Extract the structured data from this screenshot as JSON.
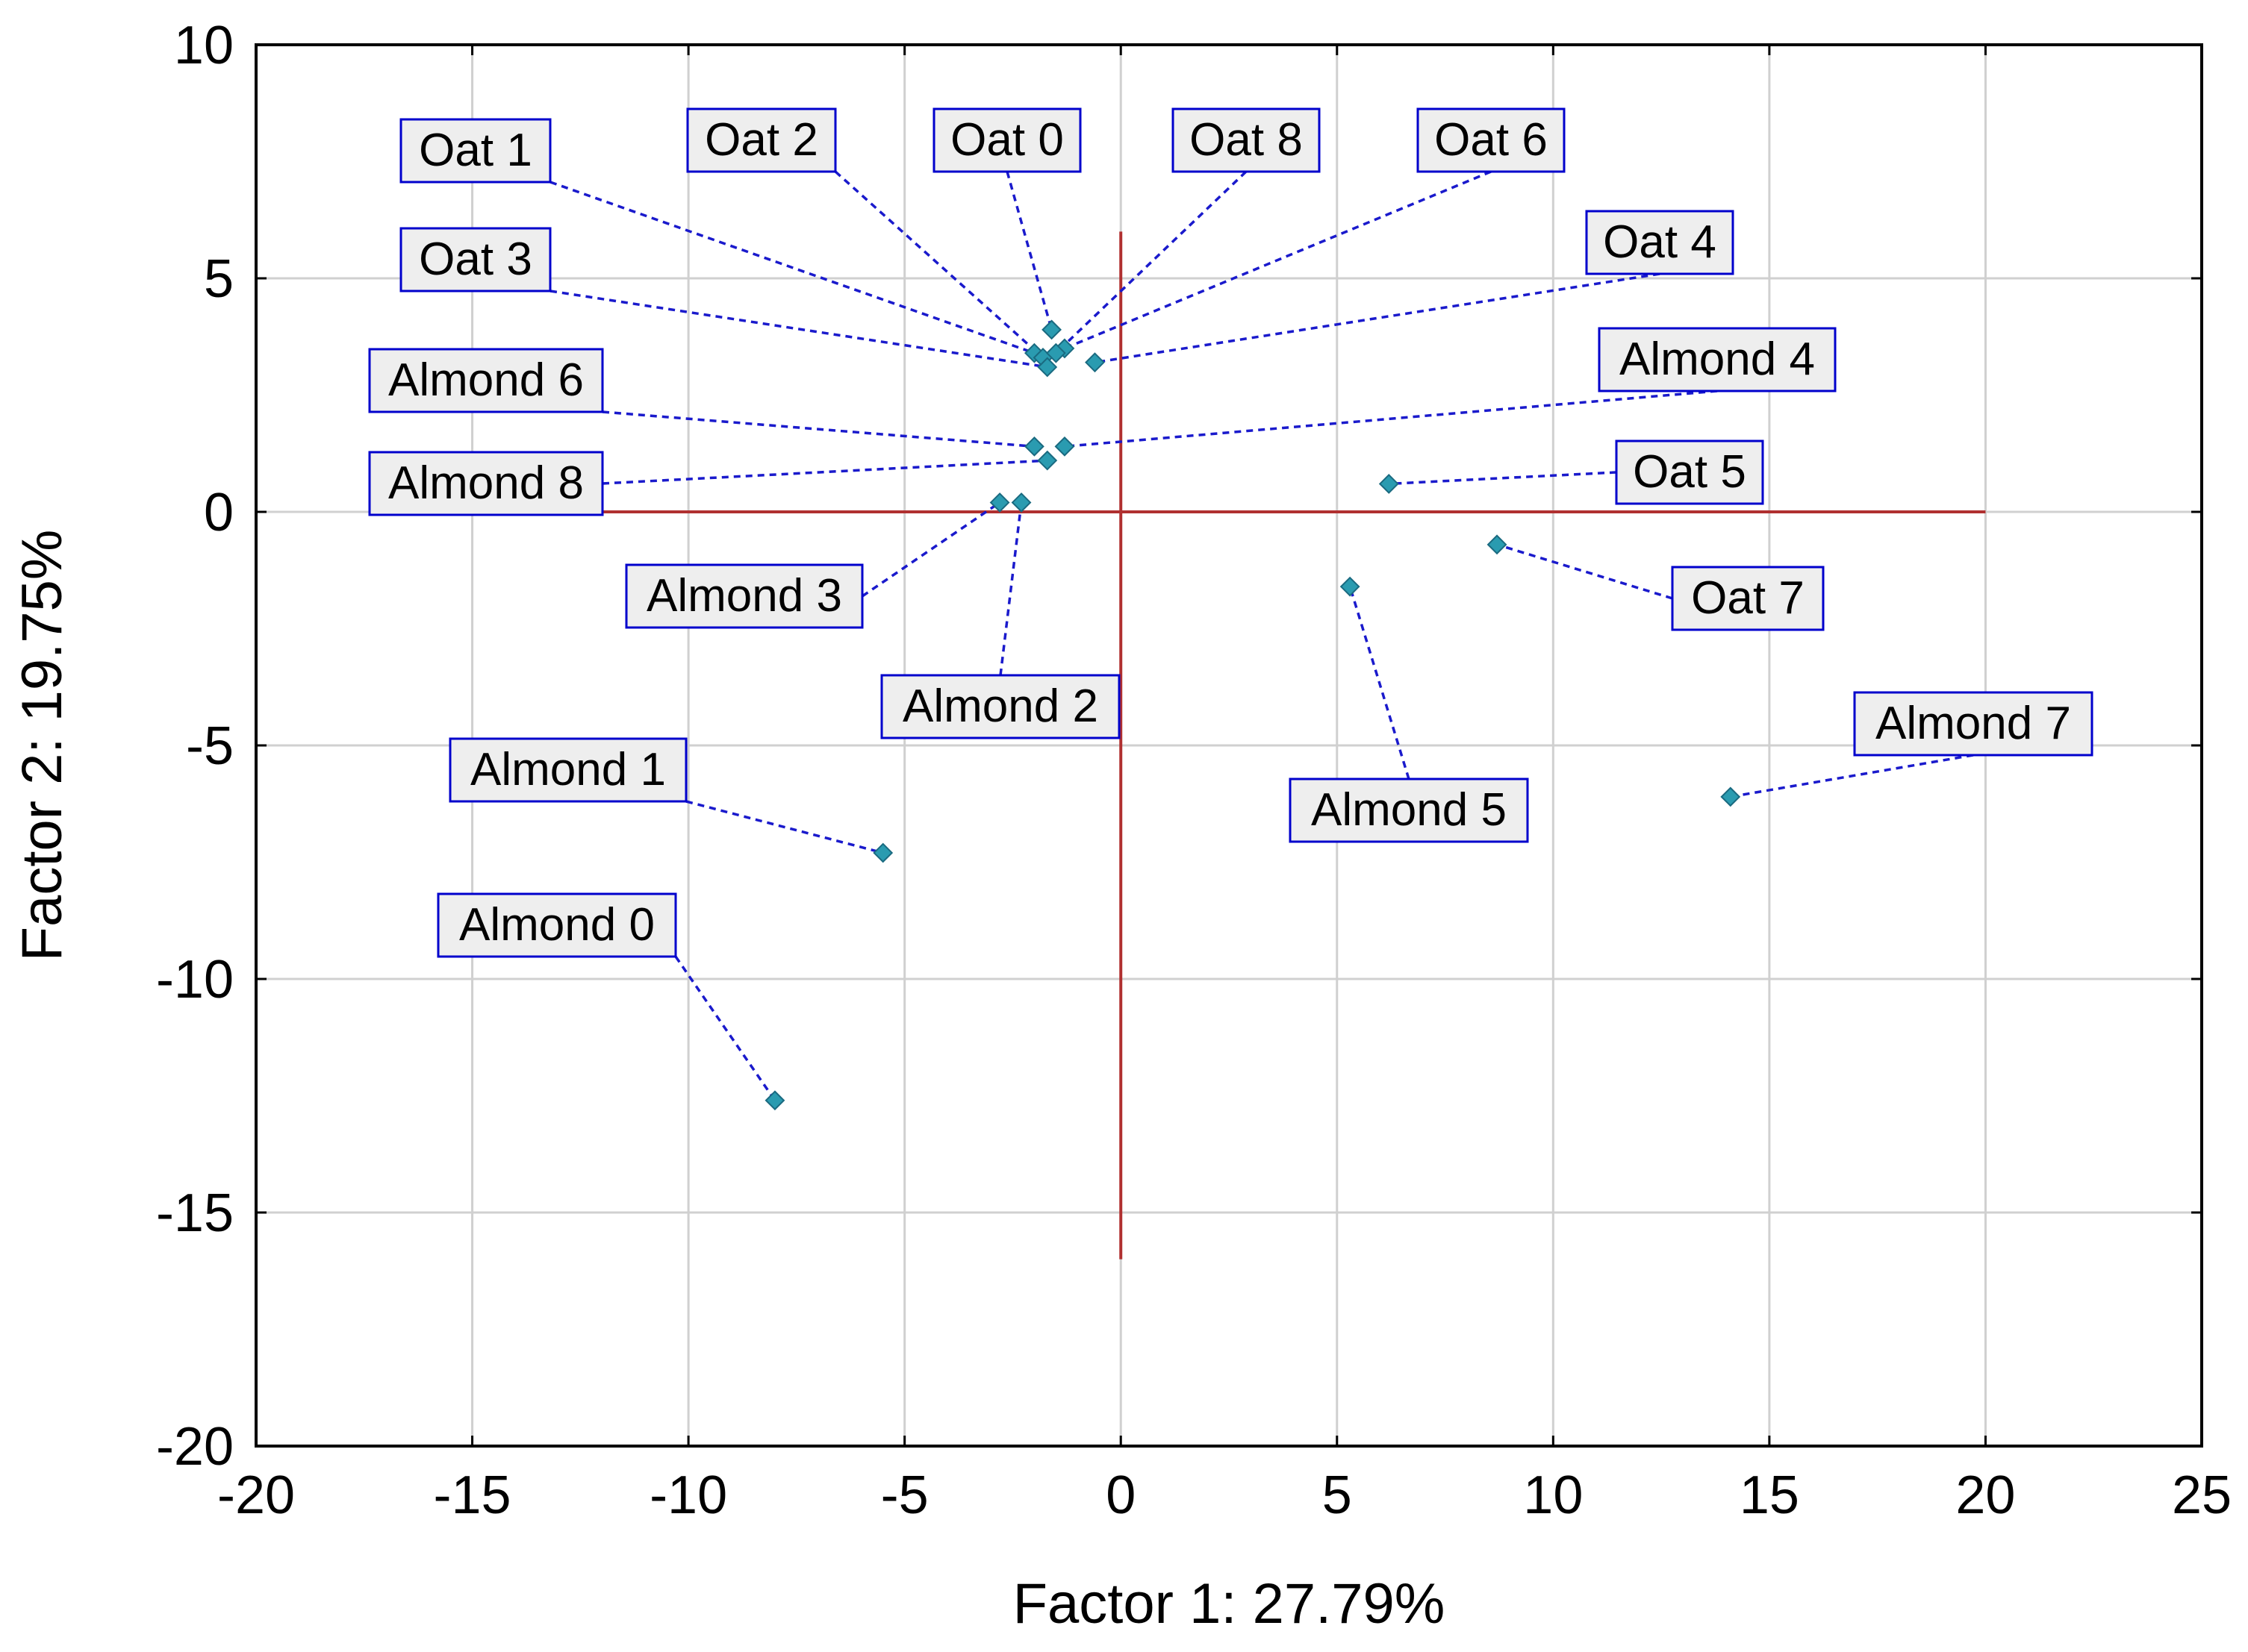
{
  "chart_data": {
    "type": "scatter",
    "title": "",
    "xlabel": "Factor 1: 27.79%",
    "ylabel": "Factor 2: 19.75%",
    "xlim": [
      -20,
      25
    ],
    "ylim": [
      -20,
      10
    ],
    "x_ticks": [
      -20,
      -15,
      -10,
      -5,
      0,
      5,
      10,
      15,
      20,
      25
    ],
    "y_ticks": [
      10,
      5,
      0,
      -5,
      -10,
      -15,
      -20
    ],
    "grid": true,
    "reference_lines": {
      "horizontal": {
        "y": 0,
        "x_range": [
          -12,
          20
        ]
      },
      "vertical": {
        "x": 0,
        "y_range": [
          -16,
          6
        ]
      },
      "color": "#b03030"
    },
    "marker_color": "#2a9bb0",
    "label_box_fill": "#eeeeee",
    "label_box_border": "#0000cc",
    "points": [
      {
        "name": "Oat 0",
        "x": -1.6,
        "y": 3.9
      },
      {
        "name": "Oat 1",
        "x": -2.0,
        "y": 3.4
      },
      {
        "name": "Oat 2",
        "x": -1.8,
        "y": 3.3
      },
      {
        "name": "Oat 3",
        "x": -1.7,
        "y": 3.1
      },
      {
        "name": "Oat 4",
        "x": -0.6,
        "y": 3.2
      },
      {
        "name": "Oat 5",
        "x": 6.2,
        "y": 0.6
      },
      {
        "name": "Oat 6",
        "x": -1.3,
        "y": 3.5
      },
      {
        "name": "Oat 7",
        "x": 8.7,
        "y": -0.7
      },
      {
        "name": "Oat 8",
        "x": -1.5,
        "y": 3.4
      },
      {
        "name": "Almond 0",
        "x": -8.0,
        "y": -12.6
      },
      {
        "name": "Almond 1",
        "x": -5.5,
        "y": -7.3
      },
      {
        "name": "Almond 2",
        "x": -2.3,
        "y": 0.2
      },
      {
        "name": "Almond 3",
        "x": -2.8,
        "y": 0.2
      },
      {
        "name": "Almond 4",
        "x": -1.3,
        "y": 1.4
      },
      {
        "name": "Almond 5",
        "x": 5.3,
        "y": -1.6
      },
      {
        "name": "Almond 6",
        "x": -2.0,
        "y": 1.4
      },
      {
        "name": "Almond 7",
        "x": 14.1,
        "y": -6.1
      },
      {
        "name": "Almond 8",
        "x": -1.7,
        "y": 1.1
      }
    ]
  }
}
